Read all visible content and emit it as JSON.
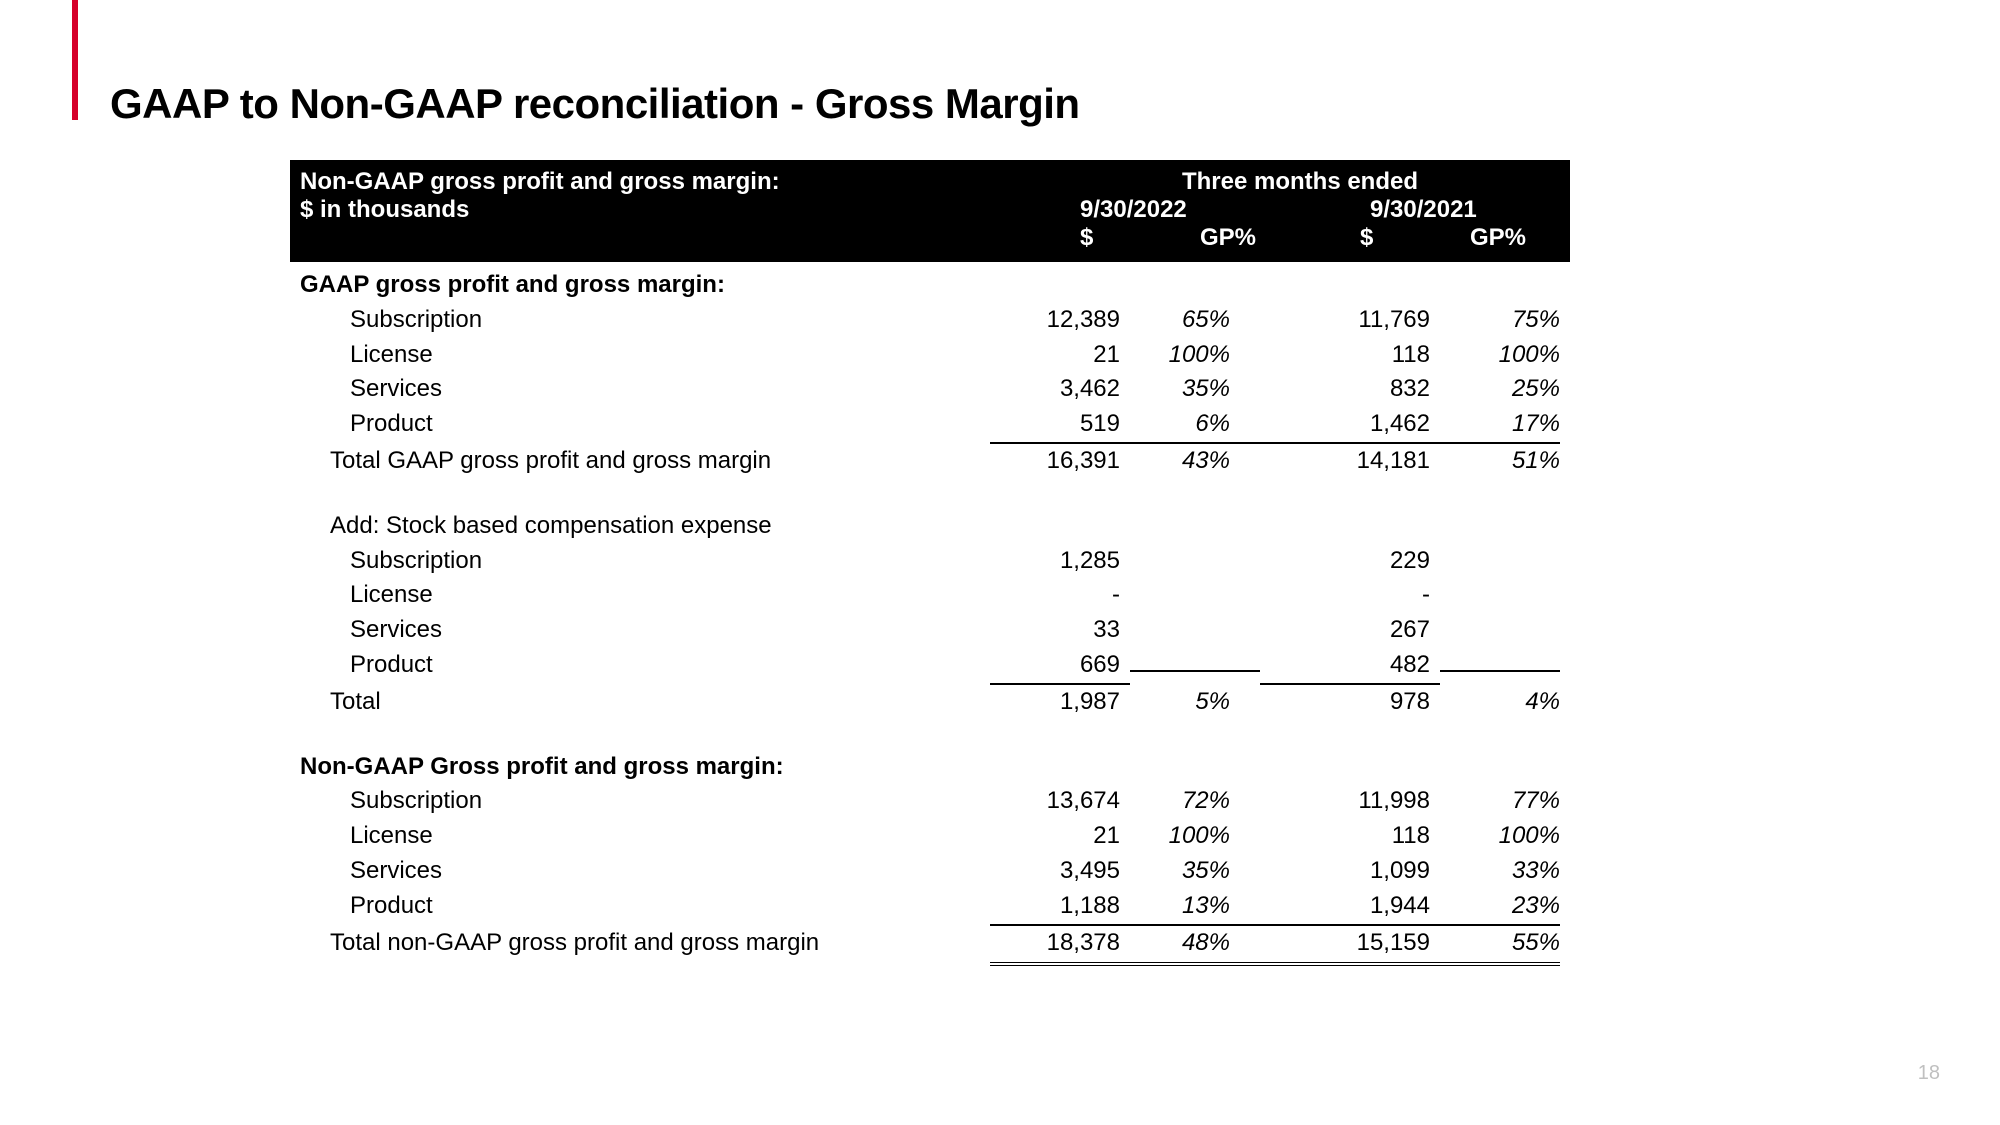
{
  "slide": {
    "title": "GAAP to Non-GAAP reconciliation - Gross Margin",
    "page_number": "18"
  },
  "header": {
    "title_line": "Non-GAAP gross profit and gross margin:",
    "subtitle": "$ in thousands",
    "period_label": "Three months ended",
    "date1": "9/30/2022",
    "date2": "9/30/2021",
    "col_dollar": "$",
    "col_gp": "GP%"
  },
  "sections": {
    "gaap": {
      "heading": "GAAP gross profit and gross margin:",
      "rows": [
        {
          "label": "Subscription",
          "v1": "12,389",
          "g1": "65%",
          "v2": "11,769",
          "g2": "75%"
        },
        {
          "label": "License",
          "v1": "21",
          "g1": "100%",
          "v2": "118",
          "g2": "100%"
        },
        {
          "label": "Services",
          "v1": "3,462",
          "g1": "35%",
          "v2": "832",
          "g2": "25%"
        },
        {
          "label": "Product",
          "v1": "519",
          "g1": "6%",
          "v2": "1,462",
          "g2": "17%"
        }
      ],
      "total": {
        "label": "Total GAAP gross profit and gross margin",
        "v1": "16,391",
        "g1": "43%",
        "v2": "14,181",
        "g2": "51%"
      }
    },
    "add": {
      "heading": "Add: Stock based compensation expense",
      "rows": [
        {
          "label": "Subscription",
          "v1": "1,285",
          "g1": "",
          "v2": "229",
          "g2": ""
        },
        {
          "label": "License",
          "v1": "-",
          "g1": "",
          "v2": "-",
          "g2": ""
        },
        {
          "label": "Services",
          "v1": "33",
          "g1": "",
          "v2": "267",
          "g2": ""
        },
        {
          "label": "Product",
          "v1": "669",
          "g1": "",
          "v2": "482",
          "g2": ""
        }
      ],
      "total": {
        "label": "Total",
        "v1": "1,987",
        "g1": "5%",
        "v2": "978",
        "g2": "4%"
      }
    },
    "nongaap": {
      "heading": "Non-GAAP Gross profit and gross margin:",
      "rows": [
        {
          "label": "Subscription",
          "v1": "13,674",
          "g1": "72%",
          "v2": "11,998",
          "g2": "77%"
        },
        {
          "label": "License",
          "v1": "21",
          "g1": "100%",
          "v2": "118",
          "g2": "100%"
        },
        {
          "label": "Services",
          "v1": "3,495",
          "g1": "35%",
          "v2": "1,099",
          "g2": "33%"
        },
        {
          "label": "Product",
          "v1": "1,188",
          "g1": "13%",
          "v2": "1,944",
          "g2": "23%"
        }
      ],
      "total": {
        "label": "Total non-GAAP gross profit and gross margin",
        "v1": "18,378",
        "g1": "48%",
        "v2": "15,159",
        "g2": "55%"
      }
    }
  }
}
